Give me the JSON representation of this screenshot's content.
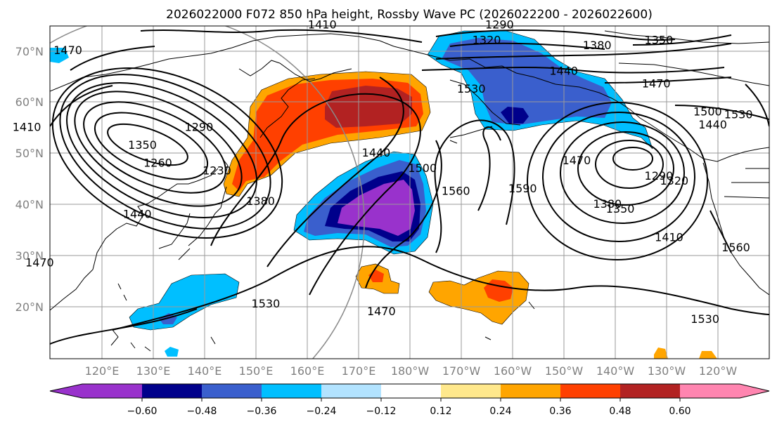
{
  "title": "2026022000 F072 850 hPa height, Rossby Wave PC (2026022200 - 2026022600)",
  "colors": {
    "purple": "#9932cc",
    "navy": "#00008b",
    "royal": "#3a5fcd",
    "deepsky": "#00bfff",
    "lightblue": "#b2e3ff",
    "white": "#ffffff",
    "lightyellow": "#ffe88c",
    "orange": "#ffa500",
    "orangered": "#ff4000",
    "firebrick": "#b22222",
    "pink": "#ff85b0"
  },
  "axes": {
    "lat_ticks": [
      "70°N",
      "60°N",
      "50°N",
      "40°N",
      "30°N",
      "20°N"
    ],
    "lon_ticks": [
      "120°E",
      "130°E",
      "140°E",
      "150°E",
      "160°E",
      "170°E",
      "180°W",
      "170°W",
      "160°W",
      "150°W",
      "140°W",
      "130°W",
      "120°W"
    ]
  },
  "colorbar": {
    "ticks": [
      "−0.60",
      "−0.48",
      "−0.36",
      "−0.24",
      "−0.12",
      "0.12",
      "0.24",
      "0.36",
      "0.48",
      "0.60"
    ]
  },
  "contour_labels": [
    {
      "text": "1410",
      "lon": 163,
      "lat": 74.5
    },
    {
      "text": "1290",
      "lon": 197.5,
      "lat": 74.5
    },
    {
      "text": "1320",
      "lon": 195,
      "lat": 71.5
    },
    {
      "text": "1380",
      "lon": 216.5,
      "lat": 70.5
    },
    {
      "text": "1350",
      "lon": 228.5,
      "lat": 71.5
    },
    {
      "text": "1440",
      "lon": 210,
      "lat": 65.5
    },
    {
      "text": "1470",
      "lon": 228,
      "lat": 63
    },
    {
      "text": "1500",
      "lon": 238,
      "lat": 57.5
    },
    {
      "text": "1530",
      "lon": 244,
      "lat": 57
    },
    {
      "text": "1440",
      "lon": 239,
      "lat": 55
    },
    {
      "text": "1470",
      "lon": 113.5,
      "lat": 69.5
    },
    {
      "text": "1530",
      "lon": 192,
      "lat": 62
    },
    {
      "text": "1410",
      "lon": 105.5,
      "lat": 54.5
    },
    {
      "text": "1290",
      "lon": 139,
      "lat": 54.5
    },
    {
      "text": "1350",
      "lon": 128,
      "lat": 51
    },
    {
      "text": "1260",
      "lon": 131,
      "lat": 47.5
    },
    {
      "text": "1230",
      "lon": 142.5,
      "lat": 46
    },
    {
      "text": "1440",
      "lon": 173.5,
      "lat": 49.5
    },
    {
      "text": "1500",
      "lon": 182.5,
      "lat": 46.5
    },
    {
      "text": "1560",
      "lon": 189,
      "lat": 42
    },
    {
      "text": "1590",
      "lon": 202,
      "lat": 42.5
    },
    {
      "text": "1470",
      "lon": 212.5,
      "lat": 48
    },
    {
      "text": "1380",
      "lon": 218.5,
      "lat": 39.5
    },
    {
      "text": "1350",
      "lon": 221,
      "lat": 38.5
    },
    {
      "text": "1290",
      "lon": 228.5,
      "lat": 45
    },
    {
      "text": "1320",
      "lon": 231.5,
      "lat": 44
    },
    {
      "text": "1410",
      "lon": 230.5,
      "lat": 33
    },
    {
      "text": "1440",
      "lon": 127,
      "lat": 37.5
    },
    {
      "text": "1560",
      "lon": 243.5,
      "lat": 31
    },
    {
      "text": "1470",
      "lon": 108,
      "lat": 28
    },
    {
      "text": "1530",
      "lon": 152,
      "lat": 20
    },
    {
      "text": "1470",
      "lon": 174.5,
      "lat": 18.5
    },
    {
      "text": "1530",
      "lon": 237.5,
      "lat": 17
    },
    {
      "text": "1380",
      "lon": 151,
      "lat": 40
    }
  ]
}
